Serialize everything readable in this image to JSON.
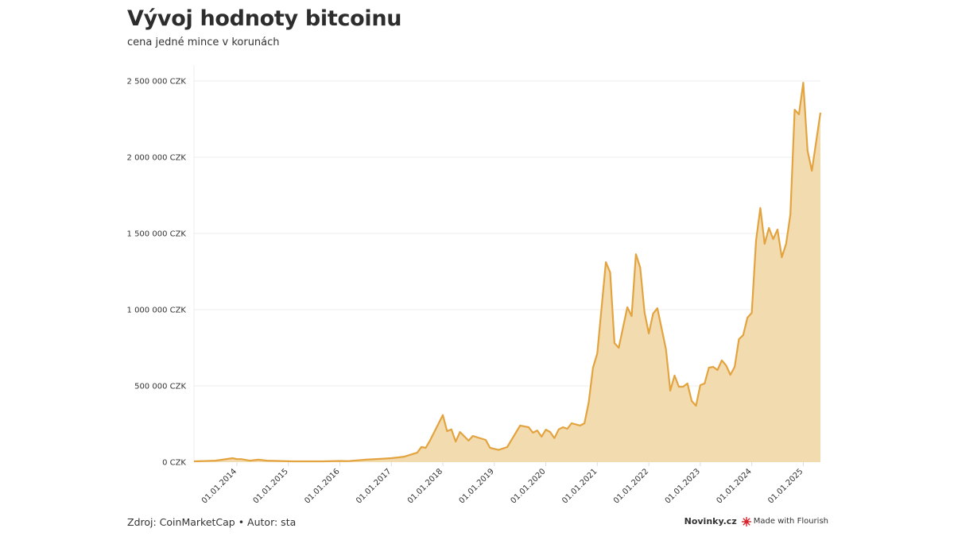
{
  "chart_data": {
    "type": "area",
    "title": "Vývoj hodnoty bitcoinu",
    "subtitle": "cena jedné mince v korunách",
    "xlabel": "",
    "ylabel": "",
    "ylim": [
      0,
      2500000
    ],
    "xlim": [
      "2013-03",
      "2025-05"
    ],
    "grid": true,
    "y_ticks": [
      "0 CZK",
      "500 000 CZK",
      "1 000 000 CZK",
      "1 500 000 CZK",
      "2 000 000 CZK",
      "2 500 000 CZK"
    ],
    "y_tick_values": [
      0,
      500000,
      1000000,
      1500000,
      2000000,
      2500000
    ],
    "x_ticks": [
      "01.01.2014",
      "01.01.2015",
      "01.01.2016",
      "01.01.2017",
      "01.01.2018",
      "01.01.2019",
      "01.01.2020",
      "01.01.2021",
      "01.01.2022",
      "01.01.2023",
      "01.01.2024",
      "01.01.2025"
    ],
    "colors": {
      "line": "#e3a33f",
      "fill": "#f3dbb0"
    },
    "series": [
      {
        "points": [
          [
            "2013-03",
            5000
          ],
          [
            "2013-08",
            10000
          ],
          [
            "2013-12",
            26000
          ],
          [
            "2014-01",
            20000
          ],
          [
            "2014-02",
            20000
          ],
          [
            "2014-04",
            10000
          ],
          [
            "2014-06",
            16000
          ],
          [
            "2014-08",
            10000
          ],
          [
            "2015-02",
            5000
          ],
          [
            "2015-09",
            5000
          ],
          [
            "2016-01",
            8000
          ],
          [
            "2016-03",
            7000
          ],
          [
            "2016-07",
            16000
          ],
          [
            "2016-10",
            21000
          ],
          [
            "2017-01",
            26000
          ],
          [
            "2017-04",
            36000
          ],
          [
            "2017-07",
            62000
          ],
          [
            "2017-08",
            100000
          ],
          [
            "2017-09",
            94000
          ],
          [
            "2017-10",
            141000
          ],
          [
            "2018-01",
            309000
          ],
          [
            "2018-02",
            203000
          ],
          [
            "2018-03",
            215000
          ],
          [
            "2018-04",
            135000
          ],
          [
            "2018-05",
            198000
          ],
          [
            "2018-07",
            141000
          ],
          [
            "2018-08",
            172000
          ],
          [
            "2018-11",
            146000
          ],
          [
            "2018-12",
            94000
          ],
          [
            "2019-02",
            80000
          ],
          [
            "2019-04",
            99000
          ],
          [
            "2019-07",
            240000
          ],
          [
            "2019-09",
            229000
          ],
          [
            "2019-10",
            193000
          ],
          [
            "2019-11",
            208000
          ],
          [
            "2019-12",
            167000
          ],
          [
            "2020-01",
            213000
          ],
          [
            "2020-02",
            198000
          ],
          [
            "2020-03",
            158000
          ],
          [
            "2020-04",
            215000
          ],
          [
            "2020-05",
            229000
          ],
          [
            "2020-06",
            219000
          ],
          [
            "2020-07",
            255000
          ],
          [
            "2020-09",
            240000
          ],
          [
            "2020-10",
            255000
          ],
          [
            "2020-11",
            391000
          ],
          [
            "2020-12",
            620000
          ],
          [
            "2021-01",
            713000
          ],
          [
            "2021-03",
            1312000
          ],
          [
            "2021-04",
            1245000
          ],
          [
            "2021-05",
            781000
          ],
          [
            "2021-06",
            750000
          ],
          [
            "2021-08",
            1016000
          ],
          [
            "2021-09",
            958000
          ],
          [
            "2021-10",
            1364000
          ],
          [
            "2021-11",
            1276000
          ],
          [
            "2021-12",
            984000
          ],
          [
            "2022-01",
            844000
          ],
          [
            "2022-02",
            974000
          ],
          [
            "2022-03",
            1010000
          ],
          [
            "2022-05",
            740000
          ],
          [
            "2022-06",
            469000
          ],
          [
            "2022-07",
            568000
          ],
          [
            "2022-08",
            495000
          ],
          [
            "2022-09",
            495000
          ],
          [
            "2022-10",
            516000
          ],
          [
            "2022-11",
            401000
          ],
          [
            "2022-12",
            370000
          ],
          [
            "2023-01",
            505000
          ],
          [
            "2023-02",
            516000
          ],
          [
            "2023-03",
            620000
          ],
          [
            "2023-04",
            625000
          ],
          [
            "2023-05",
            604000
          ],
          [
            "2023-06",
            667000
          ],
          [
            "2023-07",
            635000
          ],
          [
            "2023-08",
            573000
          ],
          [
            "2023-09",
            625000
          ],
          [
            "2023-10",
            807000
          ],
          [
            "2023-11",
            833000
          ],
          [
            "2023-12",
            948000
          ],
          [
            "2024-01",
            979000
          ],
          [
            "2024-02",
            1453000
          ],
          [
            "2024-03",
            1667000
          ],
          [
            "2024-04",
            1432000
          ],
          [
            "2024-05",
            1536000
          ],
          [
            "2024-06",
            1463000
          ],
          [
            "2024-07",
            1526000
          ],
          [
            "2024-08",
            1344000
          ],
          [
            "2024-09",
            1432000
          ],
          [
            "2024-10",
            1625000
          ],
          [
            "2024-11",
            2312000
          ],
          [
            "2024-12",
            2281000
          ],
          [
            "2025-01",
            2489000
          ],
          [
            "2025-02",
            2042000
          ],
          [
            "2025-03",
            1911000
          ],
          [
            "2025-05",
            2292000
          ]
        ]
      }
    ]
  },
  "footer": {
    "source": "Zdroj: CoinMarketCap • Autor: sta",
    "brand": "Novinky.cz",
    "flourish": "Made with Flourish"
  }
}
